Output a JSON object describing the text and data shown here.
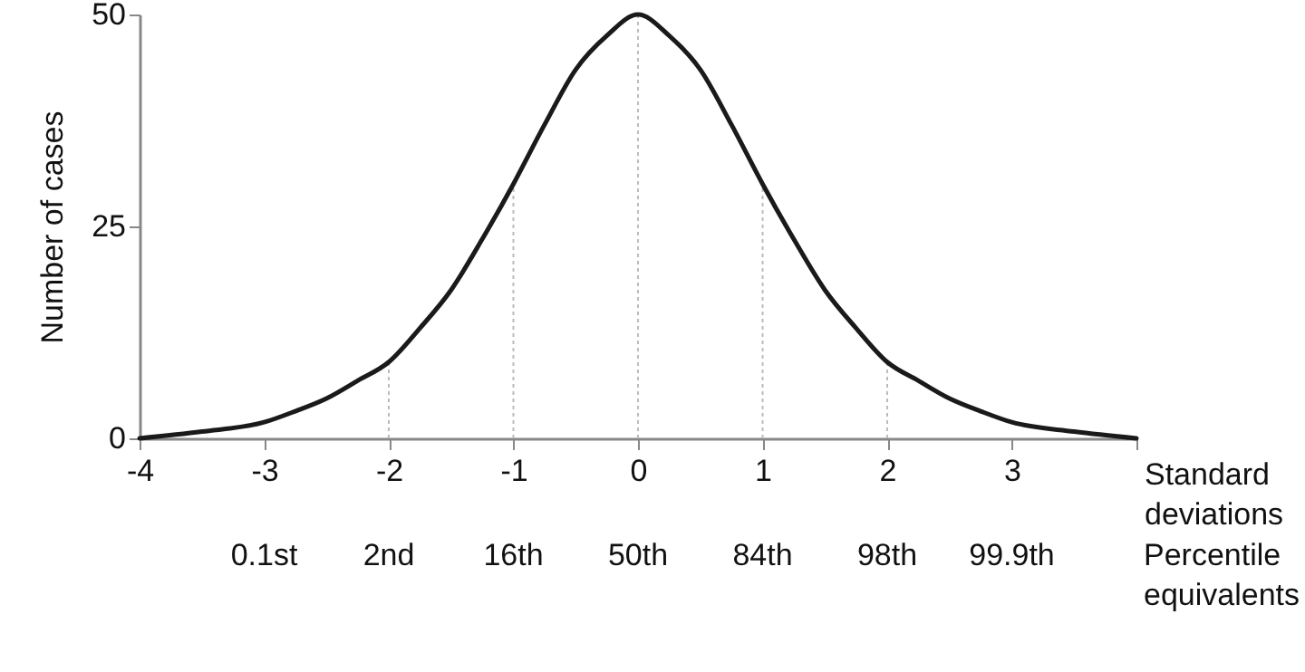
{
  "chart_data": {
    "type": "line",
    "xlabel": "Standard deviations",
    "ylabel": "Number of cases",
    "x": [
      -4,
      -3.5,
      -3,
      -2.75,
      -2.5,
      -2.25,
      -2,
      -1.75,
      -1.5,
      -1.25,
      -1,
      -0.75,
      -0.5,
      -0.25,
      0,
      0.25,
      0.5,
      0.75,
      1,
      1.25,
      1.5,
      1.75,
      2,
      2.25,
      2.5,
      2.75,
      3,
      3.5,
      4
    ],
    "series": [
      {
        "color": "#1a1a1a",
        "values": [
          0,
          0.8,
          1.9,
          3.2,
          4.7,
          6.8,
          9,
          13,
          17.5,
          23.5,
          30,
          37,
          43.5,
          47.5,
          50,
          47.5,
          43.5,
          37,
          30,
          23.5,
          17.5,
          13,
          9,
          6.8,
          4.7,
          3.2,
          1.9,
          0.8,
          0
        ]
      }
    ],
    "xlim": [
      -4,
      4
    ],
    "ylim": [
      0,
      50
    ],
    "xticks": [
      -4,
      -3,
      -2,
      -1,
      0,
      1,
      2,
      3,
      {
        "value": 4,
        "label": null
      }
    ],
    "yticks": [
      0,
      25,
      50
    ],
    "annotations": [
      "0.1st",
      "2nd",
      "16th",
      "50th",
      "84th",
      "98th",
      "99.9th",
      "Percentile equivalents"
    ],
    "ref_lines": [
      {
        "axis": "x",
        "value": -2,
        "color": "#bbbbbb",
        "line_style": "dotted"
      },
      {
        "axis": "x",
        "value": -1,
        "color": "#bbbbbb",
        "line_style": "dotted"
      },
      {
        "axis": "x",
        "value": 0,
        "color": "#bbbbbb",
        "line_style": "dotted"
      },
      {
        "axis": "x",
        "value": 1,
        "color": "#bbbbbb",
        "line_style": "dotted"
      },
      {
        "axis": "x",
        "value": 2,
        "color": "#bbbbbb",
        "line_style": "dotted"
      }
    ],
    "line_style": "solid"
  }
}
